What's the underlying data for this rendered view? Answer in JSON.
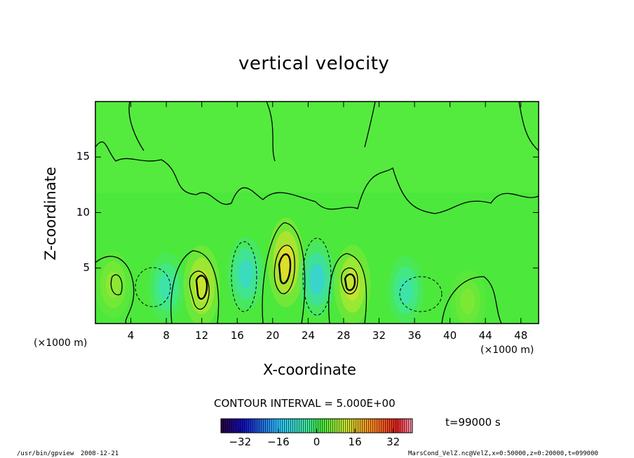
{
  "chart_data": {
    "type": "heatmap",
    "title": "vertical velocity",
    "xlabel": "X-coordinate",
    "ylabel": "Z-coordinate",
    "x_unit": "(×1000 m)",
    "z_unit": "(×1000 m)",
    "xlim": [
      0,
      50
    ],
    "ylim": [
      0,
      20
    ],
    "x_ticks": [
      4,
      8,
      12,
      16,
      20,
      24,
      28,
      32,
      36,
      40,
      44,
      48
    ],
    "y_ticks": [
      5,
      10,
      15
    ],
    "contour_interval": "CONTOUR INTERVAL = 5.000E+00",
    "time_label": "t=99000 s",
    "colorbar": {
      "range": [
        -40,
        40
      ],
      "ticks": [
        -32,
        -16,
        0,
        16,
        32
      ],
      "tick_labels": [
        "−32",
        "−16",
        "0",
        "16",
        "32"
      ]
    },
    "features": [
      {
        "x": 2,
        "z": 3.5,
        "value": 8
      },
      {
        "x": 8,
        "z": 3.3,
        "value": -9
      },
      {
        "x": 12,
        "z": 3.4,
        "value": 18
      },
      {
        "x": 17,
        "z": 4.5,
        "value": -12
      },
      {
        "x": 21.5,
        "z": 5.5,
        "value": 24
      },
      {
        "x": 25,
        "z": 4,
        "value": -14
      },
      {
        "x": 29,
        "z": 3.5,
        "value": 17
      },
      {
        "x": 35,
        "z": 3,
        "value": -9
      },
      {
        "x": 42,
        "z": 2,
        "value": 6
      }
    ]
  },
  "footer": {
    "program": "/usr/bin/gpview",
    "date": "2008-12-21",
    "source": "MarsCond_VelZ.nc@VelZ,x=0:50000,z=0:20000,t=099000"
  }
}
